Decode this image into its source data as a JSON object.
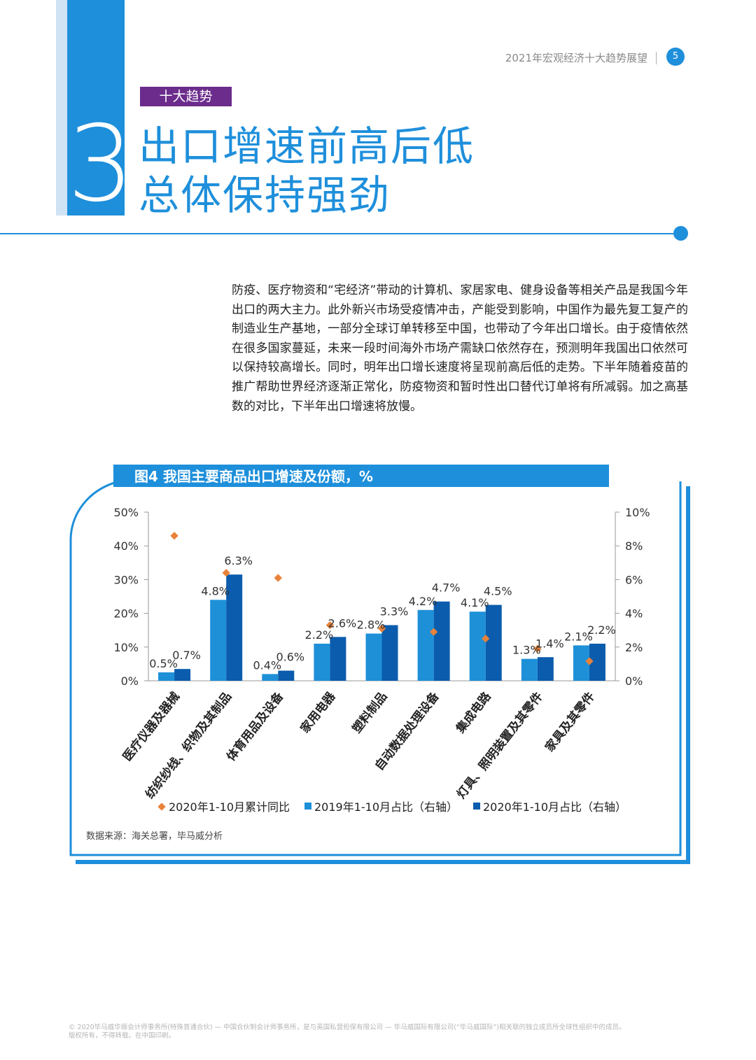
{
  "header": {
    "doc_title": "2021年宏观经济十大趋势展望",
    "page_number": "5"
  },
  "section": {
    "tag": "十大趋势",
    "number": "3",
    "title_line1": "出口增速前高后低",
    "title_line2": "总体保持强劲"
  },
  "body_paragraph": "防疫、医疗物资和“宅经济”带动的计算机、家居家电、健身设备等相关产品是我国今年出口的两大主力。此外新兴市场受疫情冲击，产能受到影响，中国作为最先复工复产的制造业生产基地，一部分全球订单转移至中国，也带动了今年出口增长。由于疫情依然在很多国家蔓延，未来一段时间海外市场产需缺口依然存在，预测明年我国出口依然可以保持较高增长。同时，明年出口增长速度将呈现前高后低的走势。下半年随着疫苗的推广帮助世界经济逐渐正常化，防疫物资和暂时性出口替代订单将有所减弱。加之高基数的对比，下半年出口增速将放慢。",
  "chart_data": {
    "type": "bar",
    "title": "图4 我国主要商品出口增速及份额，%",
    "categories": [
      "医疗仪器及器械",
      "纺织纱线、织物及其制品",
      "体育用品及设备",
      "家用电器",
      "塑料制品",
      "自动数据处理设备",
      "集成电路",
      "灯具、照明装置及其零件",
      "家具及其零件"
    ],
    "left_axis": {
      "ticks": [
        "0%",
        "10%",
        "20%",
        "30%",
        "40%",
        "50%"
      ],
      "ylim": [
        0,
        50
      ]
    },
    "right_axis": {
      "ticks": [
        "0%",
        "2%",
        "4%",
        "6%",
        "8%",
        "10%"
      ],
      "ylim": [
        0,
        10
      ]
    },
    "series": [
      {
        "name": "2020年1-10月累计同比",
        "kind": "scatter",
        "axis": "left",
        "color": "#e8823a",
        "values": [
          43,
          32,
          30.5,
          16.5,
          15.5,
          14.5,
          12.5,
          9.5,
          5.8
        ]
      },
      {
        "name": "2019年1-10月占比（右轴）",
        "kind": "bar",
        "axis": "right",
        "color": "#1e90d8",
        "values": [
          0.5,
          4.8,
          0.4,
          2.2,
          2.8,
          4.2,
          4.1,
          1.3,
          2.1
        ],
        "labels": [
          "0.5%",
          "4.8%",
          "0.4%",
          "2.2%",
          "2.8%",
          "4.2%",
          "4.1%",
          "1.3%",
          "2.1%"
        ]
      },
      {
        "name": "2020年1-10月占比（右轴）",
        "kind": "bar",
        "axis": "right",
        "color": "#0b5cad",
        "values": [
          0.7,
          6.3,
          0.6,
          2.6,
          3.3,
          4.7,
          4.5,
          1.4,
          2.2
        ],
        "labels": [
          "0.7%",
          "6.3%",
          "0.6%",
          "2.6%",
          "3.3%",
          "4.7%",
          "4.5%",
          "1.4%",
          "2.2%"
        ]
      }
    ],
    "legend_position": "bottom",
    "grid": false
  },
  "source_note": "数据来源：海关总署，毕马威分析",
  "footer": {
    "line1": "© 2020毕马威华振会计师事务所(特殊普通合伙) — 中国合伙制会计师事务所，是与英国私营担保有限公司 — 毕马威国际有限公司(“毕马威国际”)相关联的独立成员所全球性组织中的成员。",
    "line2": "版权所有，不得转载。在中国印刷。"
  }
}
